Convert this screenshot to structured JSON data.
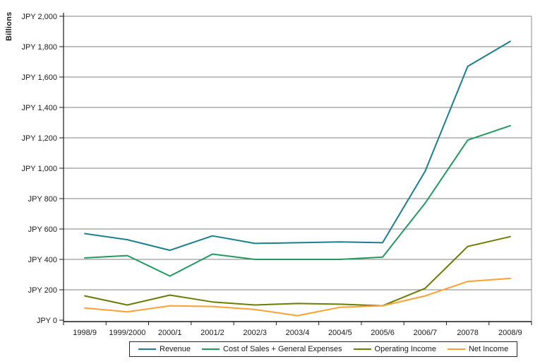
{
  "page": {
    "background": "#ffffff"
  },
  "chart_data": {
    "type": "line",
    "title": "",
    "xlabel": "",
    "ylabel": "Billions",
    "y_tick_prefix": "JPY ",
    "ylim": [
      0,
      2000
    ],
    "y_tick_step": 200,
    "grid": "horizontal",
    "legend_position": "bottom",
    "categories": [
      "1998/9",
      "1999/2000",
      "2000/1",
      "2001/2",
      "2002/3",
      "2003/4",
      "2004/5",
      "2005/6",
      "2006/7",
      "20078",
      "2008/9"
    ],
    "series": [
      {
        "name": "Revenue",
        "color": "#1A7F8E",
        "values": [
          570,
          530,
          460,
          555,
          505,
          510,
          515,
          510,
          980,
          1670,
          1835
        ]
      },
      {
        "name": "Cost of Sales + General Expenses",
        "color": "#229A5E",
        "values": [
          410,
          425,
          290,
          435,
          400,
          400,
          400,
          415,
          770,
          1185,
          1280
        ]
      },
      {
        "name": "Operating Income",
        "color": "#6E7C00",
        "values": [
          160,
          100,
          165,
          120,
          100,
          110,
          105,
          95,
          210,
          485,
          550
        ]
      },
      {
        "name": "Net Income",
        "color": "#FFA033",
        "values": [
          80,
          55,
          95,
          90,
          70,
          30,
          85,
          95,
          160,
          255,
          275
        ]
      }
    ]
  },
  "style": {
    "grid_color": "#808080",
    "axis_color": "#1a1a1a",
    "text_color": "#1a1a1a",
    "plot_border_color": "#8c8c8c"
  }
}
